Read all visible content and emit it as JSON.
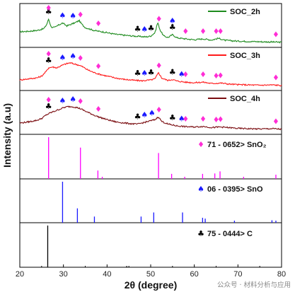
{
  "chart_data": {
    "type": "line",
    "xlabel": "2θ (degree)",
    "ylabel": "Intensity (a.u)",
    "xlim": [
      20,
      80
    ],
    "xticks": [
      "20",
      "30",
      "40",
      "50",
      "60",
      "70",
      "80"
    ],
    "symbols": {
      "clubs": "♣",
      "spade": "♠",
      "diamond": "♦"
    },
    "colors": {
      "SOC_2h": "#1e8b1e",
      "SOC_3h": "#ff1a1a",
      "SOC_4h": "#7a0c10",
      "SnO2_ref": "#ff00ff",
      "SnO_ref": "#1a1aff",
      "C_ref": "#000000",
      "diamond": "#ff2dd6",
      "spade": "#1a1aff",
      "clubs": "#000000"
    },
    "series": [
      {
        "name": "SOC_2h",
        "x": [
          20,
          22,
          24,
          25.5,
          26.2,
          26.6,
          27.2,
          28,
          29,
          29.8,
          30.8,
          31.8,
          32.8,
          33.6,
          34.2,
          35,
          36,
          37,
          38,
          39,
          40,
          42,
          44,
          46,
          48,
          49,
          50,
          51,
          51.6,
          52.2,
          53,
          54,
          55,
          56,
          57,
          58,
          60,
          62,
          64,
          65.5,
          66,
          67,
          70,
          75,
          78,
          80
        ],
        "y": [
          0.45,
          0.47,
          0.5,
          0.56,
          0.72,
          0.9,
          0.62,
          0.6,
          0.7,
          0.76,
          0.66,
          0.72,
          0.78,
          0.85,
          0.72,
          0.6,
          0.55,
          0.5,
          0.47,
          0.45,
          0.42,
          0.36,
          0.33,
          0.3,
          0.28,
          0.27,
          0.3,
          0.42,
          0.78,
          0.5,
          0.3,
          0.25,
          0.35,
          0.24,
          0.22,
          0.2,
          0.17,
          0.2,
          0.16,
          0.22,
          0.2,
          0.15,
          0.12,
          0.1,
          0.09,
          0.08
        ]
      },
      {
        "name": "SOC_3h",
        "x": [
          20,
          22,
          24,
          25,
          26,
          26.6,
          27.5,
          28.5,
          29.5,
          30.5,
          31.5,
          32.5,
          33.5,
          34.5,
          35.5,
          37,
          38,
          40,
          42,
          44,
          46,
          48,
          50,
          51,
          51.8,
          52.5,
          54,
          55,
          56,
          58,
          60,
          62,
          64,
          66,
          68,
          70,
          75,
          78,
          80
        ],
        "y": [
          0.28,
          0.32,
          0.36,
          0.42,
          0.58,
          0.72,
          0.75,
          0.72,
          0.8,
          0.86,
          0.9,
          0.86,
          0.82,
          0.75,
          0.65,
          0.55,
          0.5,
          0.42,
          0.35,
          0.3,
          0.27,
          0.25,
          0.28,
          0.32,
          0.55,
          0.35,
          0.26,
          0.3,
          0.24,
          0.2,
          0.18,
          0.2,
          0.15,
          0.17,
          0.13,
          0.11,
          0.09,
          0.1,
          0.08
        ]
      },
      {
        "name": "SOC_4h",
        "x": [
          20,
          22,
          24,
          25,
          26,
          27,
          28,
          29,
          30,
          31,
          32,
          33,
          34,
          35,
          36,
          37,
          38,
          40,
          42,
          44,
          46,
          47,
          48,
          49,
          50,
          51,
          51.8,
          52.5,
          54,
          56,
          58,
          60,
          62,
          64,
          66,
          70,
          75,
          78,
          80
        ],
        "y": [
          0.3,
          0.34,
          0.4,
          0.46,
          0.58,
          0.66,
          0.72,
          0.78,
          0.84,
          0.88,
          0.88,
          0.85,
          0.8,
          0.72,
          0.65,
          0.58,
          0.52,
          0.42,
          0.34,
          0.3,
          0.27,
          0.26,
          0.3,
          0.34,
          0.38,
          0.42,
          0.52,
          0.36,
          0.26,
          0.2,
          0.17,
          0.16,
          0.18,
          0.14,
          0.16,
          0.11,
          0.09,
          0.1,
          0.08
        ]
      }
    ],
    "references": [
      {
        "name": "71 - 0652> SnO₂",
        "symbol": "diamond",
        "peaks": [
          [
            26.6,
            1.0
          ],
          [
            33.9,
            0.75
          ],
          [
            37.9,
            0.2
          ],
          [
            38.9,
            0.05
          ],
          [
            51.8,
            0.62
          ],
          [
            54.8,
            0.12
          ],
          [
            57.8,
            0.05
          ],
          [
            61.9,
            0.12
          ],
          [
            64.7,
            0.13
          ],
          [
            65.9,
            0.18
          ],
          [
            71.3,
            0.05
          ],
          [
            78.7,
            0.1
          ]
        ]
      },
      {
        "name": "06 - 0395> SnO",
        "symbol": "spade",
        "peaks": [
          [
            29.8,
            1.0
          ],
          [
            33.2,
            0.35
          ],
          [
            37.1,
            0.15
          ],
          [
            47.8,
            0.15
          ],
          [
            50.7,
            0.25
          ],
          [
            57.3,
            0.25
          ],
          [
            61.9,
            0.12
          ],
          [
            62.5,
            0.1
          ],
          [
            69.2,
            0.05
          ],
          [
            77.8,
            0.06
          ],
          [
            78.7,
            0.05
          ]
        ]
      },
      {
        "name": "75 - 0444> C",
        "symbol": "clubs",
        "peaks": [
          [
            26.4,
            1.0
          ],
          [
            44.5,
            0.03
          ]
        ]
      }
    ],
    "peak_markers": [
      {
        "series": "SOC_2h",
        "marks": [
          [
            "clubs",
            26.6
          ],
          [
            "diamond",
            26.6
          ],
          [
            "spade",
            29.8
          ],
          [
            "spade",
            32.2
          ],
          [
            "diamond",
            33.9
          ],
          [
            "diamond",
            38.0
          ],
          [
            "clubs",
            47.0
          ],
          [
            "spade",
            48.6
          ],
          [
            "clubs",
            50.1
          ],
          [
            "diamond",
            51.9
          ],
          [
            "clubs",
            55.0
          ],
          [
            "spade",
            55.0
          ],
          [
            "diamond",
            58.0
          ],
          [
            "diamond",
            62.0
          ],
          [
            "diamond",
            65.0
          ],
          [
            "diamond",
            66.0
          ],
          [
            "diamond",
            78.7
          ]
        ]
      },
      {
        "series": "SOC_3h",
        "marks": [
          [
            "clubs",
            26.6
          ],
          [
            "diamond",
            26.6
          ],
          [
            "spade",
            29.8
          ],
          [
            "spade",
            32.2
          ],
          [
            "diamond",
            33.9
          ],
          [
            "diamond",
            38.0
          ],
          [
            "clubs",
            47.0
          ],
          [
            "spade",
            48.6
          ],
          [
            "clubs",
            50.1
          ],
          [
            "diamond",
            51.9
          ],
          [
            "clubs",
            55.0
          ],
          [
            "spade",
            57.1
          ],
          [
            "diamond",
            58.0
          ],
          [
            "diamond",
            62.0
          ],
          [
            "diamond",
            65.0
          ],
          [
            "diamond",
            66.0
          ],
          [
            "diamond",
            78.7
          ]
        ]
      },
      {
        "series": "SOC_4h",
        "marks": [
          [
            "clubs",
            26.6
          ],
          [
            "diamond",
            26.6
          ],
          [
            "spade",
            29.8
          ],
          [
            "spade",
            32.2
          ],
          [
            "diamond",
            33.9
          ],
          [
            "diamond",
            38.0
          ],
          [
            "clubs",
            47.0
          ],
          [
            "spade",
            48.6
          ],
          [
            "spade",
            50.3
          ],
          [
            "diamond",
            51.9
          ],
          [
            "clubs",
            55.0
          ],
          [
            "spade",
            57.1
          ],
          [
            "diamond",
            58.0
          ],
          [
            "diamond",
            62.0
          ],
          [
            "diamond",
            65.0
          ],
          [
            "diamond",
            66.0
          ],
          [
            "diamond",
            78.7
          ]
        ]
      }
    ]
  },
  "watermark": "公众号 · 材料分析与应用"
}
